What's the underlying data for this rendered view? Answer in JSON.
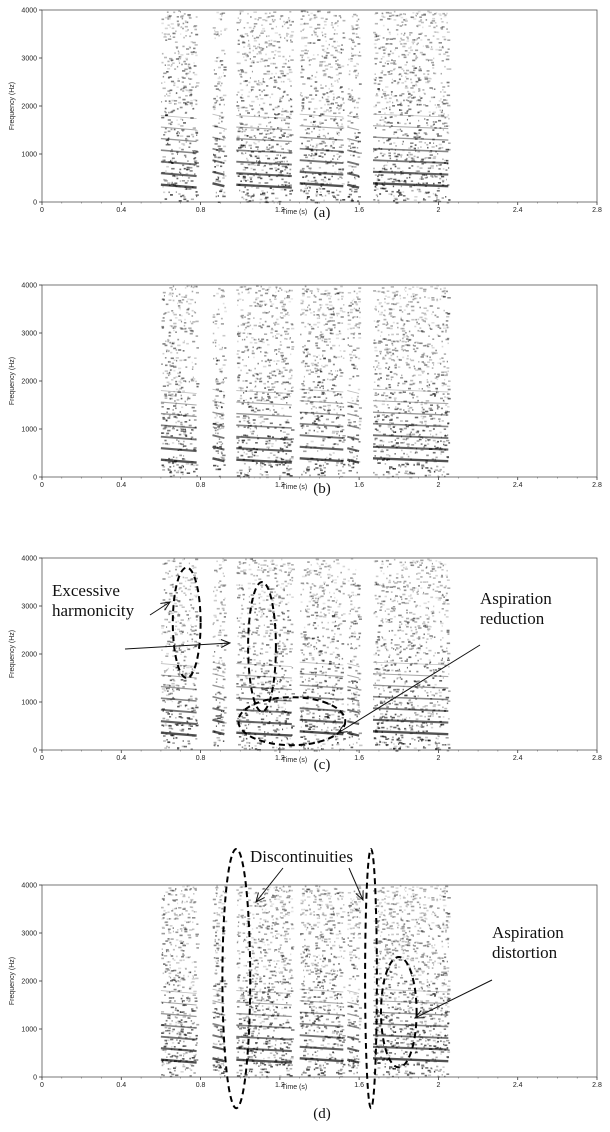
{
  "chart_data": [
    {
      "type": "heatmap",
      "caption": "(a)",
      "xlabel": "Time (s)",
      "ylabel": "Frequency (Hz)",
      "xlim": [
        0,
        2.8
      ],
      "ylim": [
        0,
        4000
      ],
      "xticks": [
        "0",
        "0.4",
        "0.8",
        "1.2",
        "1.6",
        "2",
        "2.4",
        "2.8"
      ],
      "yticks": [
        "0",
        "1000",
        "2000",
        "3000",
        "4000"
      ],
      "voiced_segments": [
        [
          0.6,
          0.78
        ],
        [
          0.86,
          0.92
        ],
        [
          0.98,
          1.26
        ],
        [
          1.3,
          1.52
        ],
        [
          1.54,
          1.6
        ],
        [
          1.67,
          2.05
        ]
      ],
      "annotations": [],
      "ellipses": []
    },
    {
      "type": "heatmap",
      "caption": "(b)",
      "xlabel": "Time (s)",
      "ylabel": "Frequency (Hz)",
      "xlim": [
        0,
        2.8
      ],
      "ylim": [
        0,
        4000
      ],
      "xticks": [
        "0",
        "0.4",
        "0.8",
        "1.2",
        "1.6",
        "2",
        "2.4",
        "2.8"
      ],
      "yticks": [
        "0",
        "1000",
        "2000",
        "3000",
        "4000"
      ],
      "voiced_segments": [
        [
          0.6,
          0.78
        ],
        [
          0.86,
          0.92
        ],
        [
          0.98,
          1.26
        ],
        [
          1.3,
          1.52
        ],
        [
          1.54,
          1.6
        ],
        [
          1.67,
          2.05
        ]
      ],
      "annotations": [],
      "ellipses": []
    },
    {
      "type": "heatmap",
      "caption": "(c)",
      "xlabel": "Time (s)",
      "ylabel": "Frequency (Hz)",
      "xlim": [
        0,
        2.8
      ],
      "ylim": [
        0,
        4000
      ],
      "xticks": [
        "0",
        "0.4",
        "0.8",
        "1.2",
        "1.6",
        "2",
        "2.4",
        "2.8"
      ],
      "yticks": [
        "0",
        "1000",
        "2000",
        "3000",
        "4000"
      ],
      "voiced_segments": [
        [
          0.6,
          0.78
        ],
        [
          0.86,
          0.92
        ],
        [
          0.98,
          1.26
        ],
        [
          1.3,
          1.52
        ],
        [
          1.54,
          1.6
        ],
        [
          1.67,
          2.05
        ]
      ],
      "annotations": [
        {
          "lines": [
            "Excessive",
            "harmonicity"
          ]
        },
        {
          "lines": [
            "Aspiration",
            "reduction"
          ]
        }
      ],
      "ellipses": [
        {
          "cx": 0.73,
          "cy": 2650,
          "rx": 0.07,
          "ry": 1150
        },
        {
          "cx": 1.11,
          "cy": 2150,
          "rx": 0.07,
          "ry": 1350
        },
        {
          "cx": 1.26,
          "cy": 600,
          "rx": 0.27,
          "ry": 500
        }
      ]
    },
    {
      "type": "heatmap",
      "caption": "(d)",
      "xlabel": "Time (s)",
      "ylabel": "Frequency (Hz)",
      "xlim": [
        0,
        2.8
      ],
      "ylim": [
        0,
        4000
      ],
      "xticks": [
        "0",
        "0.4",
        "0.8",
        "1.2",
        "1.6",
        "2",
        "2.4",
        "2.8"
      ],
      "yticks": [
        "0",
        "1000",
        "2000",
        "3000",
        "4000"
      ],
      "voiced_segments": [
        [
          0.6,
          0.78
        ],
        [
          0.86,
          0.92
        ],
        [
          0.98,
          1.26
        ],
        [
          1.3,
          1.52
        ],
        [
          1.54,
          1.6
        ],
        [
          1.67,
          2.05
        ]
      ],
      "annotations": [
        {
          "lines": [
            "Discontinuities"
          ]
        },
        {
          "lines": [
            "Aspiration",
            "distortion"
          ]
        }
      ],
      "ellipses": [
        {
          "cx": 0.98,
          "cy": 2050,
          "rx": 0.07,
          "ry": 2700
        },
        {
          "cx": 1.66,
          "cy": 2050,
          "rx": 0.03,
          "ry": 2700
        },
        {
          "cx": 1.8,
          "cy": 1350,
          "rx": 0.09,
          "ry": 1150
        }
      ]
    }
  ]
}
